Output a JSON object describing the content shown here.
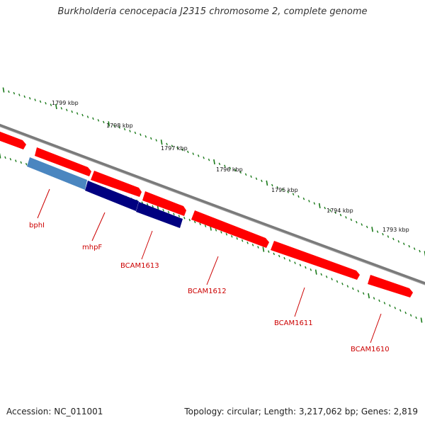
{
  "title": "Burkholderia cenocepacia J2315 chromosome 2, complete genome",
  "footer": {
    "accession": "Accession: NC_011001",
    "summary": "Topology: circular; Length: 3,217,062 bp; Genes: 2,819"
  },
  "colors": {
    "backbone": "#808080",
    "forward_gene": "#ff0000",
    "reverse_gene_light": "#4a86c0",
    "reverse_gene_dark": "#000080",
    "tick": "#1a7a1a",
    "label": "#cc0000"
  },
  "kbp_labels": [
    "1799 kbp",
    "1798 kbp",
    "1797 kbp",
    "1796 kbp",
    "1795 kbp",
    "1794 kbp",
    "1793 kbp"
  ],
  "genes": [
    {
      "label": "bphI",
      "color": "reverse_gene_light"
    },
    {
      "label": "mhpF",
      "color": "reverse_gene_dark"
    },
    {
      "label": "BCAM1613",
      "color": "reverse_gene_dark"
    },
    {
      "label": "BCAM1612",
      "color": "forward_gene"
    },
    {
      "label": "BCAM1611",
      "color": "forward_gene"
    },
    {
      "label": "BCAM1610",
      "color": "forward_gene"
    }
  ]
}
